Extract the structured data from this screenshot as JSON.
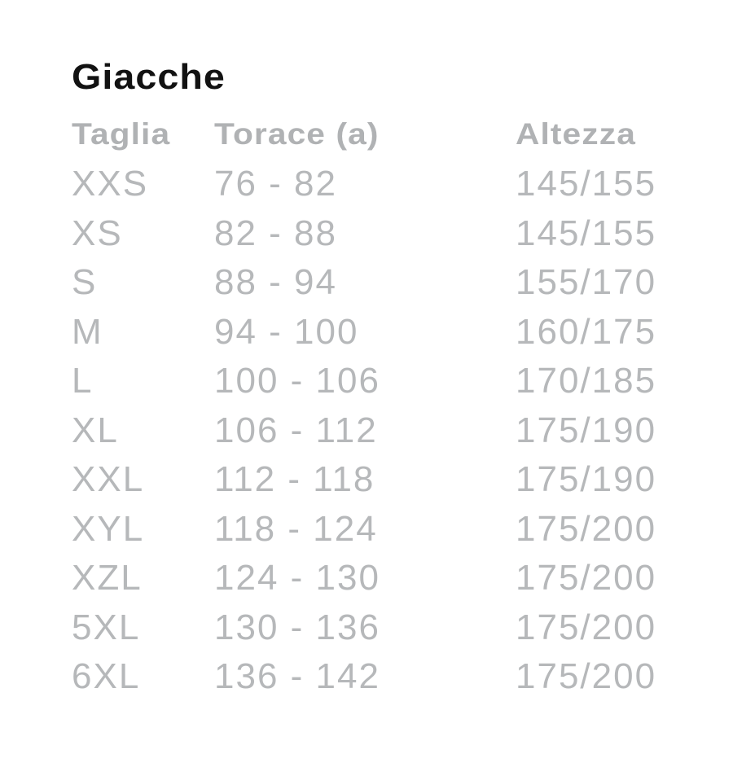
{
  "title": "Giacche",
  "table": {
    "headers": {
      "taglia": "Taglia",
      "torace": "Torace (a)",
      "altezza": "Altezza"
    },
    "rows": [
      {
        "taglia": "XXS",
        "torace": "76 - 82",
        "altezza": "145/155"
      },
      {
        "taglia": "XS",
        "torace": "82 - 88",
        "altezza": "145/155"
      },
      {
        "taglia": "S",
        "torace": "88 - 94",
        "altezza": "155/170"
      },
      {
        "taglia": "M",
        "torace": "94 - 100",
        "altezza": "160/175"
      },
      {
        "taglia": "L",
        "torace": "100 - 106",
        "altezza": "170/185"
      },
      {
        "taglia": "XL",
        "torace": "106 - 112",
        "altezza": "175/190"
      },
      {
        "taglia": "XXL",
        "torace": "112 - 118",
        "altezza": "175/190"
      },
      {
        "taglia": "XYL",
        "torace": "118 - 124",
        "altezza": "175/200"
      },
      {
        "taglia": "XZL",
        "torace": "124 - 130",
        "altezza": "175/200"
      },
      {
        "taglia": "5XL",
        "torace": "130 - 136",
        "altezza": "175/200"
      },
      {
        "taglia": "6XL",
        "torace": "136 - 142",
        "altezza": "175/200"
      }
    ]
  },
  "colors": {
    "background": "#ffffff",
    "title_text": "#121212",
    "header_text": "#b0b2b4",
    "body_text": "#b6b8ba"
  }
}
